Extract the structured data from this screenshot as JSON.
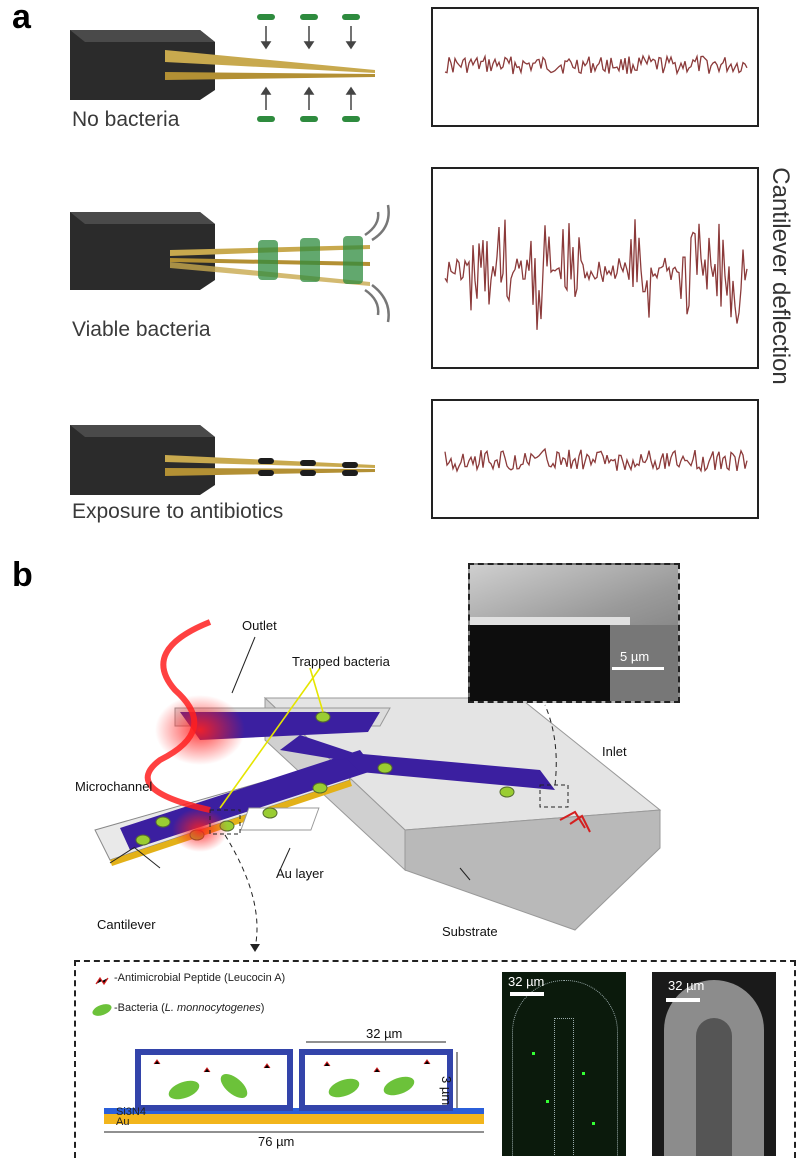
{
  "panel_a": {
    "letter": "a",
    "rows": [
      {
        "caption": "No bacteria"
      },
      {
        "caption": "Viable bacteria"
      },
      {
        "caption": "Exposure to antibiotics"
      }
    ],
    "side_label": "Cantilever deflection",
    "trace_color": "#8b3a3a",
    "bacteria_color": "#2e8b3e"
  },
  "panel_b": {
    "letter": "b",
    "labels": {
      "outlet": "Outlet",
      "trapped": "Trapped bacteria",
      "microchannel": "Microchannel",
      "inlet": "Inlet",
      "au_layer": "Au layer",
      "cantilever": "Cantilever",
      "substrate": "Substrate"
    },
    "sem_scale": "5 µm",
    "cross_section": {
      "legend_peptide": "-Antimicrobial Peptide (Leucocin A)",
      "legend_bacteria_pre": "-Bacteria (",
      "legend_bacteria_species": "L. monnocytogenes",
      "legend_bacteria_post": ")",
      "width_label": "32 µm",
      "height_label": "3 µm",
      "total_label": "76 µm",
      "layer_si": "Si3N4",
      "layer_au": "Au"
    },
    "fluorescence_scale": "32 µm",
    "sem2_scale": "32 µm",
    "colors": {
      "channel": "#3b1fa0",
      "gold": "#e3b118",
      "laser": "#ff2020"
    }
  }
}
